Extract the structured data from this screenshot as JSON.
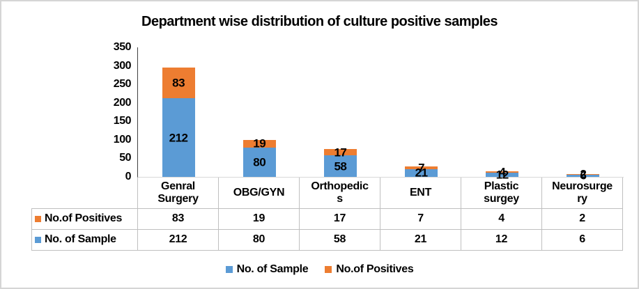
{
  "chart_data": {
    "type": "bar",
    "stacked": true,
    "title": "Department wise distribution of culture positive samples",
    "categories": [
      "Genral Surgery",
      "OBG/GYN",
      "Orthopedics",
      "ENT",
      "Plastic surgey",
      "Neurosurgery"
    ],
    "category_labels_wrapped": [
      "Genral\nSurgery",
      "OBG/GYN",
      "Orthopedic\ns",
      "ENT",
      "Plastic\nsurgey",
      "Neurosurge\nry"
    ],
    "series": [
      {
        "name": "No. of Sample",
        "color": "#5B9BD5",
        "values": [
          212,
          80,
          58,
          21,
          12,
          6
        ]
      },
      {
        "name": "No.of Positives",
        "color": "#ED7D31",
        "values": [
          83,
          19,
          17,
          7,
          4,
          2
        ]
      }
    ],
    "xlabel": "",
    "ylabel": "",
    "ylim": [
      0,
      350
    ],
    "ytick_step": 50,
    "grid": false,
    "data_labels": true,
    "legend_position": "bottom",
    "data_table_shown": true
  },
  "table": {
    "row_labels": [
      "No.of Positives",
      "No. of Sample"
    ],
    "row_key_colors": [
      "#ED7D31",
      "#5B9BD5"
    ],
    "rows": [
      [
        83,
        19,
        17,
        7,
        4,
        2
      ],
      [
        212,
        80,
        58,
        21,
        12,
        6
      ]
    ]
  },
  "legend": {
    "items": [
      {
        "label": "No. of Sample",
        "color": "#5B9BD5"
      },
      {
        "label": "No.of Positives",
        "color": "#ED7D31"
      }
    ]
  },
  "colors": {
    "sample_series": "#5B9BD5",
    "positives_series": "#ED7D31",
    "table_border": "#bfbfbf",
    "y_axis_line": "#404040",
    "x_axis_line": "#d9d9d9",
    "outer_border": "#d5d5d5"
  }
}
